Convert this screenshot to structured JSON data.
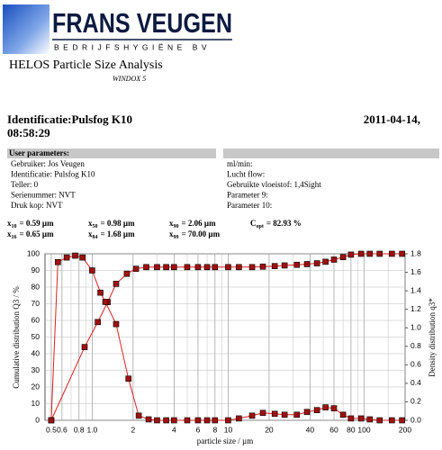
{
  "logo": {
    "name": "FRANS VEUGEN",
    "subtitle": "BEDRIJFSHYGIËNE BV"
  },
  "header": {
    "title": "HELOS Particle Size Analysis",
    "software": "WINDOX 5",
    "identification": "Identificatie:Pulsfog K10",
    "date": "2011-04-14,",
    "time": "08:58:29"
  },
  "parameters": {
    "heading": "User parameters:",
    "left": [
      "Gebruiker: Jos Veugen",
      "Identificatie: Pulsfog K10",
      "Teller: 0",
      "Serienummer: NVT",
      "Druk kop: NVT"
    ],
    "right": [
      "ml/min:",
      "Lucht flow:",
      "Gebruikte vloeistof: 1,4Sight",
      "Parameter 9:",
      "Parameter 10:"
    ]
  },
  "statistics": [
    [
      {
        "symbol": "x",
        "sub": "10",
        "text": "= 0.59 µm"
      },
      {
        "symbol": "x",
        "sub": "50",
        "text": "= 0.98 µm"
      },
      {
        "symbol": "x",
        "sub": "90",
        "text": "= 2.06 µm"
      },
      {
        "symbol": "C",
        "sub": "opt",
        "text": "= 82.93 %"
      }
    ],
    [
      {
        "symbol": "x",
        "sub": "16",
        "text": "= 0.65 µm"
      },
      {
        "symbol": "x",
        "sub": "84",
        "text": "= 1.68 µm"
      },
      {
        "symbol": "x",
        "sub": "99",
        "text": "= 70.00 µm"
      }
    ]
  ],
  "chart_data": {
    "type": "line",
    "x_label": "particle size / µm",
    "y_label": "Cumulative distribution Q3 / %",
    "y2_label": "Density distribution q3*",
    "xscale": "log",
    "xlim": [
      0.45,
      200
    ],
    "ylim": [
      0,
      100
    ],
    "y2lim": [
      0,
      1.8
    ],
    "xticks": [
      0.5,
      0.6,
      {
        "value": 0.8,
        "label": "0.8"
      },
      {
        "value": 1,
        "label": "1.0"
      },
      2,
      4,
      6,
      8,
      10,
      20,
      40,
      60,
      80,
      100,
      200
    ],
    "xminorticks": [
      0.7,
      0.9,
      3,
      5,
      7,
      9,
      30,
      50,
      70,
      90,
      150
    ],
    "yticks": [
      0,
      10,
      20,
      30,
      40,
      50,
      60,
      70,
      80,
      90,
      100
    ],
    "y2ticks": [
      {
        "value": 0,
        "label": "0.0"
      },
      0.2,
      0.4,
      0.6,
      0.8,
      {
        "value": 1,
        "label": "1.0"
      },
      1.2,
      1.4,
      1.6,
      1.8
    ],
    "grid": true,
    "series": [
      {
        "name": "Q3",
        "color": "#e02020",
        "marker_color": "#a01010",
        "marker": "square",
        "x": [
          0.5,
          0.88,
          1.1,
          1.3,
          1.5,
          1.8,
          2.1,
          2.5,
          3,
          3.5,
          4,
          5,
          6,
          7,
          8,
          10,
          12,
          15,
          18,
          22,
          26,
          32,
          38,
          45,
          52,
          60,
          70,
          80,
          95,
          110,
          130,
          160,
          190
        ],
        "values": [
          0,
          44,
          59,
          71,
          82,
          88,
          91,
          92,
          92,
          92,
          92,
          92,
          92,
          92,
          92,
          92,
          92,
          92,
          92.3,
          92.6,
          93,
          93.4,
          93.8,
          94.3,
          95.2,
          96.5,
          98,
          99.5,
          100,
          100,
          100,
          100,
          100
        ]
      },
      {
        "name": "q3*",
        "color": "#e02020",
        "marker_color": "#a01010",
        "marker": "square",
        "axis": "y2",
        "x": [
          0.5,
          0.56,
          0.65,
          0.75,
          0.85,
          1.0,
          1.15,
          1.25,
          1.5,
          1.85,
          2.2,
          2.6,
          3,
          3.5,
          4,
          5,
          6,
          7,
          8,
          10,
          12,
          15,
          18,
          22,
          26,
          32,
          38,
          45,
          52,
          60,
          70,
          80,
          95,
          110,
          130,
          160,
          190
        ],
        "values": [
          0,
          1.71,
          1.76,
          1.78,
          1.76,
          1.62,
          1.38,
          1.28,
          1.04,
          0.45,
          0.05,
          0.01,
          0,
          0,
          0,
          0,
          0,
          0,
          0,
          0,
          0.02,
          0.05,
          0.08,
          0.07,
          0.06,
          0.06,
          0.09,
          0.11,
          0.14,
          0.13,
          0.06,
          0.02,
          0.02,
          0.01,
          0,
          0,
          0
        ]
      }
    ]
  }
}
